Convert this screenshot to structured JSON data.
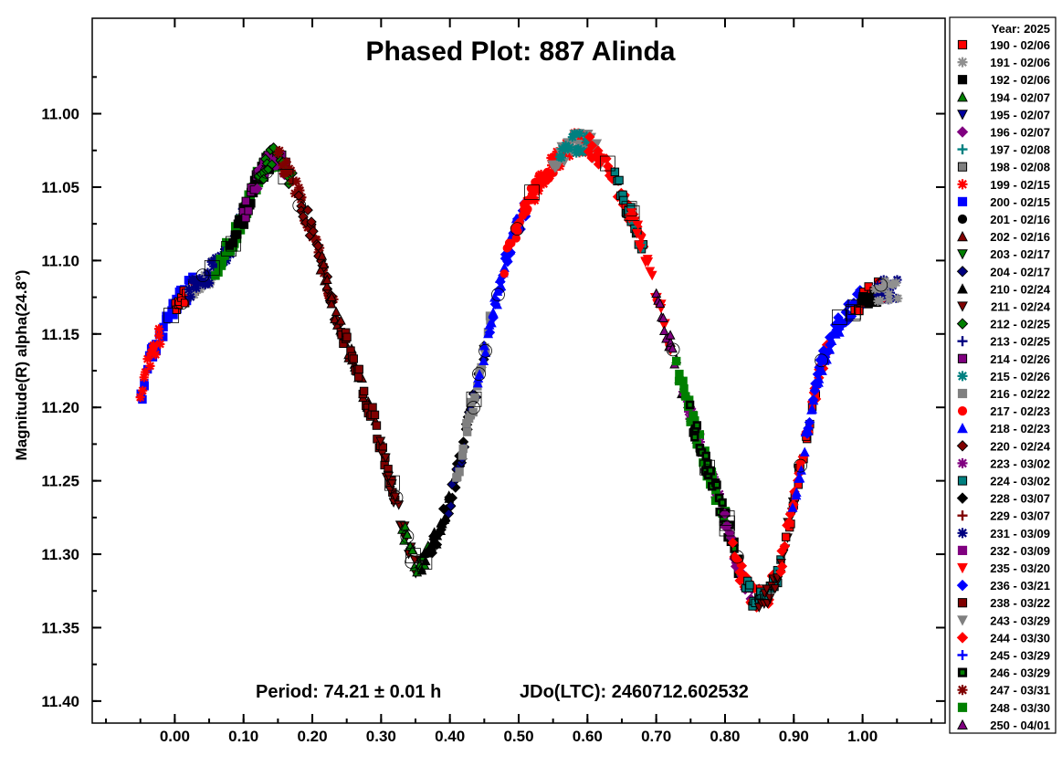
{
  "chart_data": {
    "type": "scatter",
    "title": "Phased Plot: 887 Alinda",
    "xlabel": "",
    "ylabel": "Magnitude(R) alpha(24.8°)",
    "footer_period": "Period: 74.21 ± 0.01 h",
    "footer_epoch": "JDo(LTC): 2460712.602532",
    "xlim": [
      -0.12,
      1.12
    ],
    "ylim": [
      11.415,
      10.935
    ],
    "y_inverted": true,
    "grid": false,
    "legend_position": "right",
    "legend_title": "Year: 2025",
    "x_ticks": [
      "0.00",
      "0.10",
      "0.20",
      "0.30",
      "0.40",
      "0.50",
      "0.60",
      "0.70",
      "0.80",
      "0.90",
      "1.00"
    ],
    "y_ticks": [
      "11.00",
      "11.05",
      "11.10",
      "11.15",
      "11.20",
      "11.25",
      "11.30",
      "11.35",
      "11.40"
    ],
    "lightcurve": {
      "x": [
        -0.05,
        -0.04,
        -0.02,
        0.0,
        0.02,
        0.05,
        0.08,
        0.1,
        0.12,
        0.14,
        0.15,
        0.17,
        0.2,
        0.23,
        0.26,
        0.29,
        0.31,
        0.33,
        0.35,
        0.37,
        0.4,
        0.43,
        0.46,
        0.49,
        0.52,
        0.55,
        0.58,
        0.6,
        0.62,
        0.65,
        0.68,
        0.71,
        0.74,
        0.77,
        0.8,
        0.82,
        0.84,
        0.86,
        0.88,
        0.9,
        0.92,
        0.94,
        0.97,
        1.0,
        1.03,
        1.05
      ],
      "y": [
        11.195,
        11.17,
        11.15,
        11.13,
        11.12,
        11.11,
        11.09,
        11.07,
        11.045,
        11.03,
        11.03,
        11.045,
        11.08,
        11.13,
        11.17,
        11.21,
        11.245,
        11.28,
        11.31,
        11.3,
        11.265,
        11.205,
        11.14,
        11.085,
        11.055,
        11.035,
        11.02,
        11.02,
        11.03,
        11.055,
        11.09,
        11.14,
        11.19,
        11.235,
        11.275,
        11.31,
        11.33,
        11.33,
        11.31,
        11.265,
        11.215,
        11.17,
        11.14,
        11.125,
        11.12,
        11.12
      ]
    },
    "series": [
      {
        "name": "190 - 02/06",
        "marker": "square",
        "color": "#ff0000",
        "style": "bordered"
      },
      {
        "name": "191 - 02/06",
        "marker": "asterisk",
        "color": "#909090",
        "style": "plain"
      },
      {
        "name": "192 - 02/06",
        "marker": "square",
        "color": "#000000",
        "style": "plain"
      },
      {
        "name": "194 - 02/07",
        "marker": "triangle-up",
        "color": "#008000",
        "style": "bordered"
      },
      {
        "name": "195 - 02/07",
        "marker": "triangle-down",
        "color": "#0000a0",
        "style": "bordered"
      },
      {
        "name": "196 - 02/07",
        "marker": "diamond",
        "color": "#800080",
        "style": "plain"
      },
      {
        "name": "197 - 02/08",
        "marker": "plus",
        "color": "#008080",
        "style": "plain"
      },
      {
        "name": "198 - 02/08",
        "marker": "square",
        "color": "#808080",
        "style": "bordered"
      },
      {
        "name": "199 - 02/15",
        "marker": "asterisk",
        "color": "#ff0000",
        "style": "plain"
      },
      {
        "name": "200 - 02/15",
        "marker": "square",
        "color": "#0000ff",
        "style": "plain"
      },
      {
        "name": "201 - 02/16",
        "marker": "circle",
        "color": "#000000",
        "style": "plain"
      },
      {
        "name": "202 - 02/16",
        "marker": "triangle-up",
        "color": "#800000",
        "style": "bordered"
      },
      {
        "name": "203 - 02/17",
        "marker": "triangle-down",
        "color": "#008000",
        "style": "bordered"
      },
      {
        "name": "204 - 02/17",
        "marker": "diamond",
        "color": "#000080",
        "style": "bordered"
      },
      {
        "name": "210 - 02/24",
        "marker": "triangle-up",
        "color": "#000000",
        "style": "plain"
      },
      {
        "name": "211 - 02/24",
        "marker": "triangle-down",
        "color": "#800000",
        "style": "bordered"
      },
      {
        "name": "212 - 02/25",
        "marker": "diamond",
        "color": "#008000",
        "style": "bordered"
      },
      {
        "name": "213 - 02/25",
        "marker": "plus",
        "color": "#000080",
        "style": "plain"
      },
      {
        "name": "214 - 02/26",
        "marker": "square",
        "color": "#800080",
        "style": "bordered"
      },
      {
        "name": "215 - 02/26",
        "marker": "asterisk",
        "color": "#008080",
        "style": "plain"
      },
      {
        "name": "216 - 02/22",
        "marker": "square",
        "color": "#808080",
        "style": "plain"
      },
      {
        "name": "217 - 02/23",
        "marker": "circle",
        "color": "#ff0000",
        "style": "plain"
      },
      {
        "name": "218 - 02/23",
        "marker": "triangle-up",
        "color": "#0000ff",
        "style": "plain"
      },
      {
        "name": "220 - 02/24",
        "marker": "diamond",
        "color": "#800000",
        "style": "bordered"
      },
      {
        "name": "223 - 03/02",
        "marker": "asterisk",
        "color": "#800080",
        "style": "plain"
      },
      {
        "name": "224 - 03/02",
        "marker": "square",
        "color": "#008080",
        "style": "bordered"
      },
      {
        "name": "228 - 03/07",
        "marker": "diamond",
        "color": "#000000",
        "style": "plain"
      },
      {
        "name": "229 - 03/07",
        "marker": "plus",
        "color": "#800000",
        "style": "plain"
      },
      {
        "name": "231 - 03/09",
        "marker": "asterisk",
        "color": "#000080",
        "style": "plain"
      },
      {
        "name": "232 - 03/09",
        "marker": "square",
        "color": "#800080",
        "style": "plain"
      },
      {
        "name": "235 - 03/20",
        "marker": "triangle-down",
        "color": "#ff0000",
        "style": "plain"
      },
      {
        "name": "236 - 03/21",
        "marker": "diamond",
        "color": "#0000ff",
        "style": "plain"
      },
      {
        "name": "238 - 03/22",
        "marker": "square",
        "color": "#800000",
        "style": "bordered"
      },
      {
        "name": "243 - 03/29",
        "marker": "triangle-down",
        "color": "#808080",
        "style": "plain"
      },
      {
        "name": "244 - 03/30",
        "marker": "diamond",
        "color": "#ff0000",
        "style": "plain"
      },
      {
        "name": "245 - 03/29",
        "marker": "plus",
        "color": "#0000ff",
        "style": "plain"
      },
      {
        "name": "246 - 03/29",
        "marker": "square",
        "color": "#000000",
        "style": "inner-green"
      },
      {
        "name": "247 - 03/31",
        "marker": "asterisk",
        "color": "#800000",
        "style": "plain"
      },
      {
        "name": "248 - 03/30",
        "marker": "square",
        "color": "#008000",
        "style": "plain"
      },
      {
        "name": "250 - 04/01",
        "marker": "triangle-up",
        "color": "#800080",
        "style": "bordered"
      }
    ],
    "segments": [
      {
        "series": "200 - 02/15",
        "x": [
          -0.05,
          0.03
        ]
      },
      {
        "series": "190 - 02/06",
        "x": [
          0.0,
          0.03
        ]
      },
      {
        "series": "191 - 02/06",
        "x": [
          0.02,
          0.06
        ]
      },
      {
        "series": "231 - 03/09",
        "x": [
          0.02,
          0.1
        ]
      },
      {
        "series": "199 - 02/15",
        "x": [
          -0.05,
          -0.02
        ]
      },
      {
        "series": "248 - 03/30",
        "x": [
          0.06,
          0.15
        ]
      },
      {
        "series": "192 - 02/06",
        "x": [
          0.08,
          0.14
        ]
      },
      {
        "series": "214 - 02/26",
        "x": [
          0.1,
          0.16
        ]
      },
      {
        "series": "196 - 02/07",
        "x": [
          0.12,
          0.16
        ]
      },
      {
        "series": "212 - 02/25",
        "x": [
          0.12,
          0.17
        ]
      },
      {
        "series": "247 - 03/31",
        "x": [
          0.15,
          0.23
        ]
      },
      {
        "series": "220 - 02/24",
        "x": [
          0.18,
          0.24
        ]
      },
      {
        "series": "202 - 02/16",
        "x": [
          0.21,
          0.29
        ]
      },
      {
        "series": "238 - 03/22",
        "x": [
          0.24,
          0.32
        ]
      },
      {
        "series": "211 - 02/24",
        "x": [
          0.3,
          0.35
        ]
      },
      {
        "series": "194 - 02/07",
        "x": [
          0.33,
          0.37
        ]
      },
      {
        "series": "210 - 02/24",
        "x": [
          0.36,
          0.4
        ]
      },
      {
        "series": "228 - 03/07",
        "x": [
          0.37,
          0.43
        ]
      },
      {
        "series": "204 - 02/17",
        "x": [
          0.4,
          0.45
        ]
      },
      {
        "series": "216 - 02/22",
        "x": [
          0.41,
          0.46
        ]
      },
      {
        "series": "218 - 02/23",
        "x": [
          0.44,
          0.5
        ]
      },
      {
        "series": "236 - 03/21",
        "x": [
          0.46,
          0.51
        ]
      },
      {
        "series": "217 - 02/23",
        "x": [
          0.48,
          0.56
        ]
      },
      {
        "series": "199 - 02/15",
        "x": [
          0.51,
          0.6
        ]
      },
      {
        "series": "243 - 03/29",
        "x": [
          0.55,
          0.62
        ]
      },
      {
        "series": "215 - 02/26",
        "x": [
          0.56,
          0.6
        ]
      },
      {
        "series": "244 - 03/30",
        "x": [
          0.6,
          0.68
        ]
      },
      {
        "series": "224 - 03/02",
        "x": [
          0.64,
          0.68
        ]
      },
      {
        "series": "235 - 03/20",
        "x": [
          0.66,
          0.72
        ]
      },
      {
        "series": "250 - 04/01",
        "x": [
          0.7,
          0.76
        ]
      },
      {
        "series": "223 - 03/02",
        "x": [
          0.74,
          0.8
        ]
      },
      {
        "series": "248 - 03/30",
        "x": [
          0.73,
          0.8
        ]
      },
      {
        "series": "246 - 03/29",
        "x": [
          0.75,
          0.82
        ]
      },
      {
        "series": "196 - 02/07",
        "x": [
          0.8,
          0.84
        ]
      },
      {
        "series": "244 - 03/30",
        "x": [
          0.81,
          0.87
        ]
      },
      {
        "series": "224 - 03/02",
        "x": [
          0.83,
          0.88
        ]
      },
      {
        "series": "211 - 02/24",
        "x": [
          0.85,
          0.9
        ]
      },
      {
        "series": "190 - 02/06",
        "x": [
          0.89,
          0.93
        ]
      },
      {
        "series": "244 - 03/30",
        "x": [
          0.88,
          0.95
        ]
      },
      {
        "series": "218 - 02/23",
        "x": [
          0.9,
          0.97
        ]
      },
      {
        "series": "236 - 03/21",
        "x": [
          0.92,
          1.0
        ]
      },
      {
        "series": "190 - 02/06",
        "x": [
          0.99,
          1.03
        ]
      },
      {
        "series": "192 - 02/06",
        "x": [
          1.0,
          1.03
        ]
      },
      {
        "series": "231 - 03/09",
        "x": [
          1.02,
          1.05
        ]
      },
      {
        "series": "191 - 02/06",
        "x": [
          1.02,
          1.05
        ]
      }
    ]
  }
}
